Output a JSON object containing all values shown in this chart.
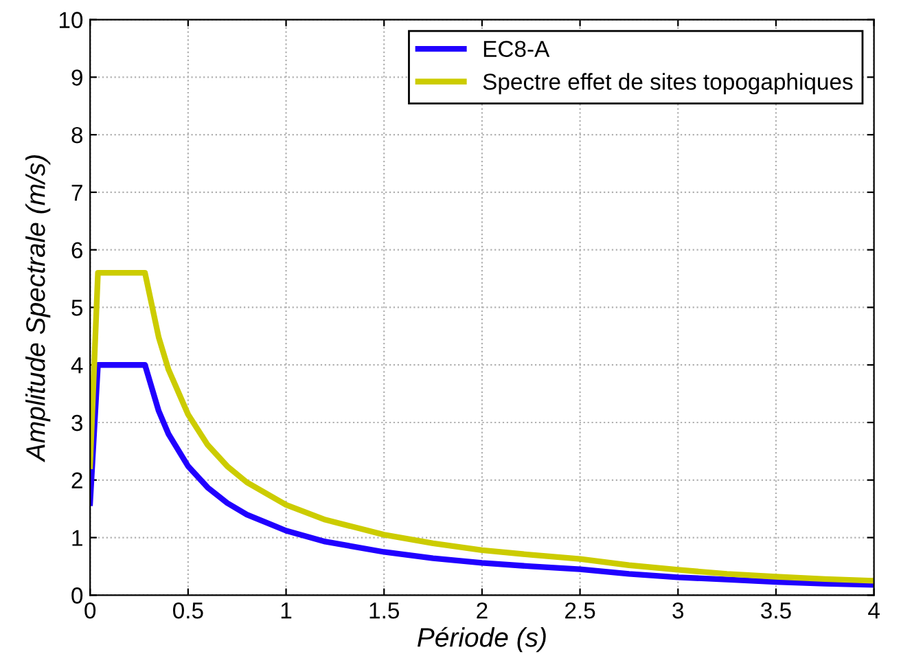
{
  "chart_data": {
    "type": "line",
    "xlabel": "Période (s)",
    "ylabel": "Amplitude Spectrale (m/s)",
    "x": [
      0,
      0.04,
      0.1,
      0.2,
      0.28,
      0.35,
      0.4,
      0.5,
      0.6,
      0.7,
      0.8,
      1,
      1.2,
      1.5,
      1.75,
      2,
      2.25,
      2.5,
      2.75,
      3,
      3.25,
      3.5,
      3.75,
      4
    ],
    "series": [
      {
        "name": "EC8-A",
        "color": "#2000ff",
        "values": [
          1.6,
          4,
          4,
          4,
          4,
          3.2,
          2.8,
          2.24,
          1.87,
          1.6,
          1.4,
          1.12,
          0.93,
          0.75,
          0.64,
          0.56,
          0.5,
          0.45,
          0.37,
          0.31,
          0.27,
          0.23,
          0.2,
          0.18
        ]
      },
      {
        "name": "Spectre effet de sites topogaphiques",
        "color": "#cccc00",
        "values": [
          2.24,
          5.6,
          5.6,
          5.6,
          5.6,
          4.48,
          3.92,
          3.14,
          2.61,
          2.24,
          1.96,
          1.57,
          1.31,
          1.05,
          0.9,
          0.78,
          0.7,
          0.63,
          0.52,
          0.44,
          0.37,
          0.32,
          0.28,
          0.25
        ]
      }
    ],
    "xlim": [
      0,
      4
    ],
    "xticks": [
      0,
      0.5,
      1,
      1.5,
      2,
      2.5,
      3,
      3.5,
      4
    ],
    "ylim": [
      0,
      10
    ],
    "yticks": [
      0,
      1,
      2,
      3,
      4,
      5,
      6,
      7,
      8,
      9,
      10
    ],
    "grid": true,
    "legend": "top right",
    "line_style": "solid",
    "marker": "none"
  }
}
